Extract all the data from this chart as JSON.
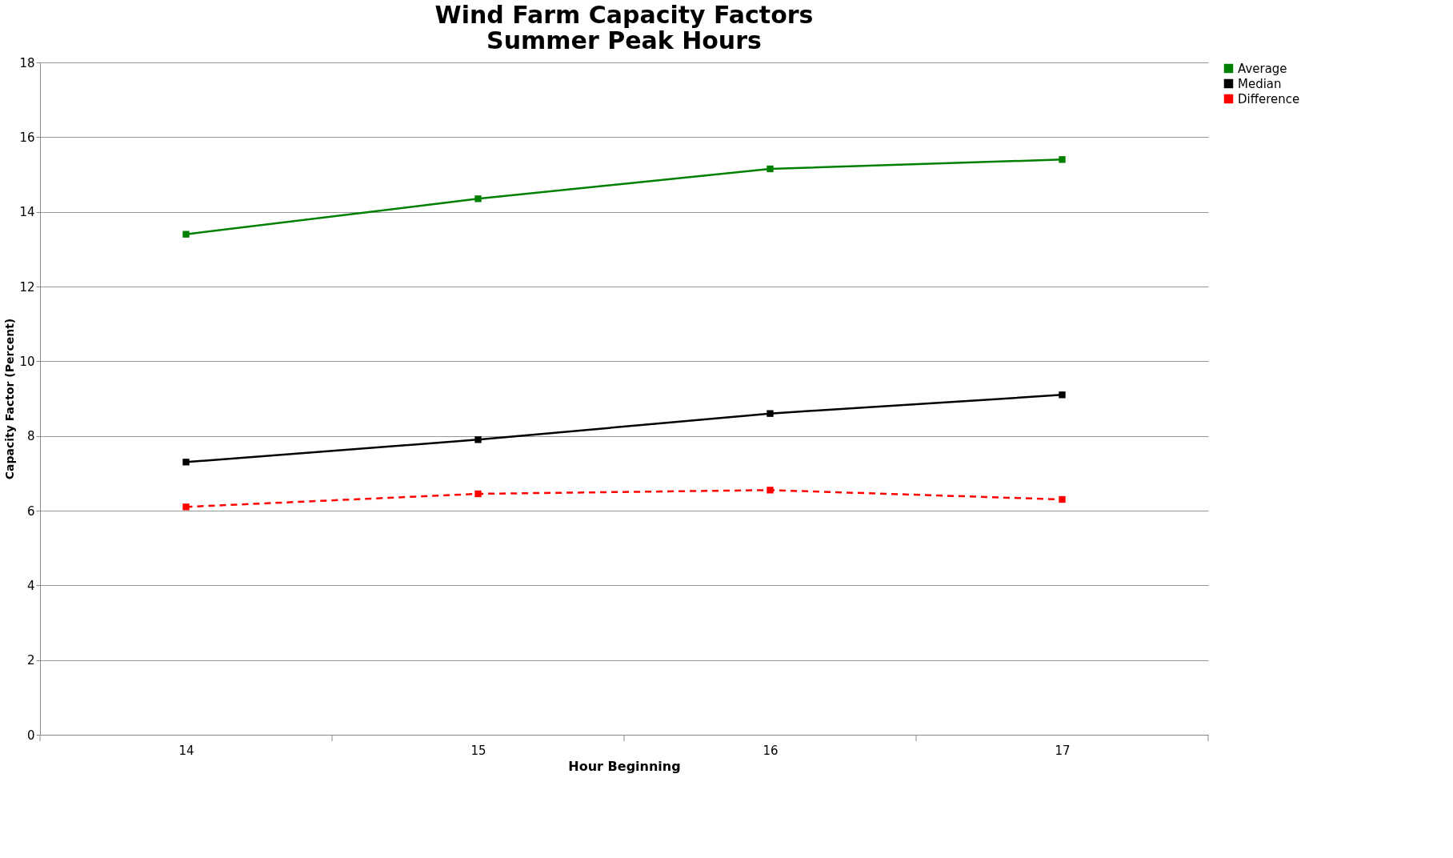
{
  "chart_data": {
    "type": "line",
    "title": [
      "Wind Farm Capacity Factors",
      "Summer Peak Hours"
    ],
    "xlabel": "Hour Beginning",
    "ylabel": "Capacity Factor (Percent)",
    "categories": [
      "14",
      "15",
      "16",
      "17"
    ],
    "series": [
      {
        "name": "Average",
        "color": "#008000",
        "values": [
          13.4,
          14.35,
          15.15,
          15.4
        ],
        "line_style": "solid"
      },
      {
        "name": "Median",
        "color": "#000000",
        "values": [
          7.3,
          7.9,
          8.6,
          9.1
        ],
        "line_style": "solid"
      },
      {
        "name": "Difference",
        "color": "#ff0000",
        "values": [
          6.1,
          6.45,
          6.55,
          6.3
        ],
        "line_style": "dashed"
      }
    ],
    "ylim": [
      0,
      18
    ],
    "yticks": [
      0,
      2,
      4,
      6,
      8,
      10,
      12,
      14,
      16,
      18
    ],
    "grid": "y",
    "legend": "right",
    "marker": "square"
  }
}
